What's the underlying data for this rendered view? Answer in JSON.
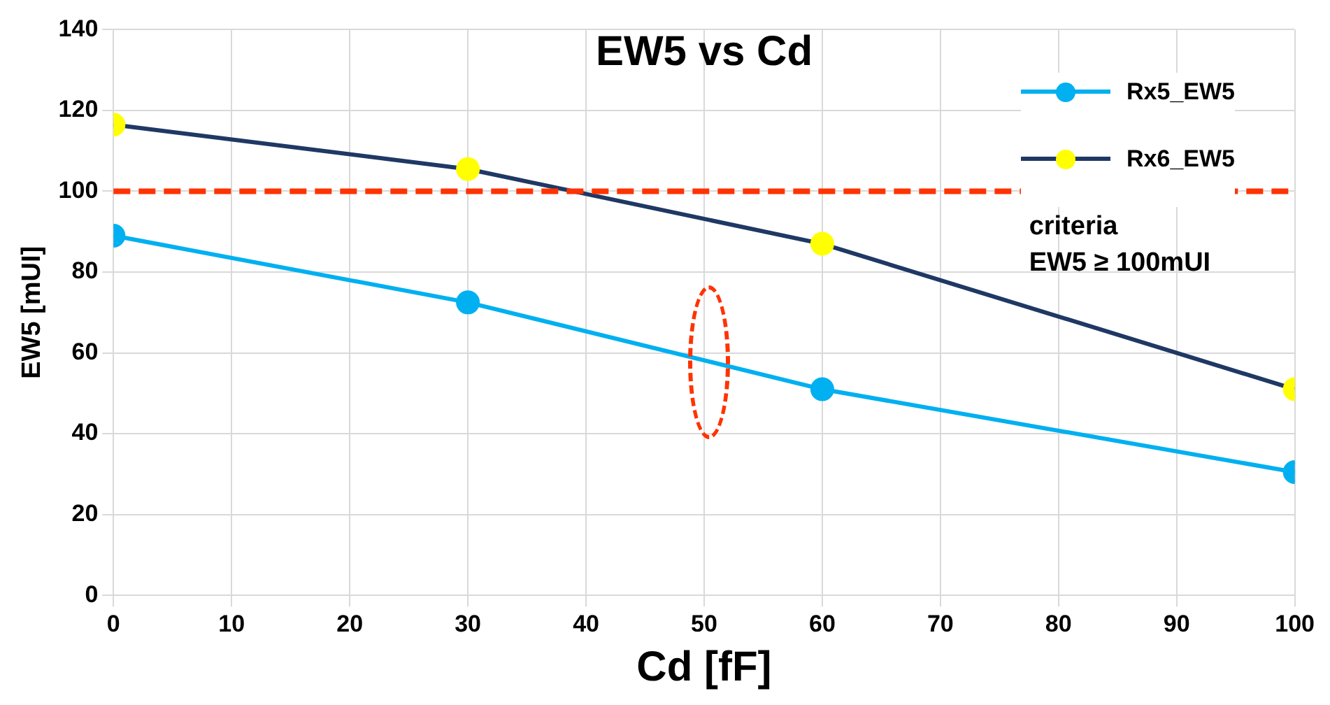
{
  "chart_data": {
    "type": "line",
    "title": "EW5 vs Cd",
    "xlabel": "Cd [fF]",
    "ylabel": "EW5 [mUI]",
    "x": [
      0,
      30,
      60,
      100
    ],
    "series": [
      {
        "name": "Rx5_EW5",
        "color": "#00b0f0",
        "values": [
          89,
          72.5,
          51,
          30.5
        ]
      },
      {
        "name": "Rx6_EW5",
        "color": "#1f3864",
        "colors": [
          "#ffff00",
          "#ffff00",
          "#ffff00",
          "#ffff00"
        ],
        "values": [
          116.5,
          105.5,
          87,
          51
        ]
      }
    ],
    "xlim": [
      0,
      100
    ],
    "xticks": [
      0,
      10,
      20,
      30,
      40,
      50,
      60,
      70,
      80,
      90,
      100
    ],
    "ylim": [
      0,
      140
    ],
    "yticks": [
      0,
      20,
      40,
      60,
      80,
      100,
      120,
      140
    ],
    "ref_lines": [
      {
        "axis": "y",
        "value": 100,
        "label": "criteria\nEW5 ≥ 100mUI",
        "color": "#ff3300",
        "line_style": "dashed"
      }
    ],
    "grid": true,
    "legend": "top right",
    "marker": "circle",
    "line_style": "solid"
  }
}
